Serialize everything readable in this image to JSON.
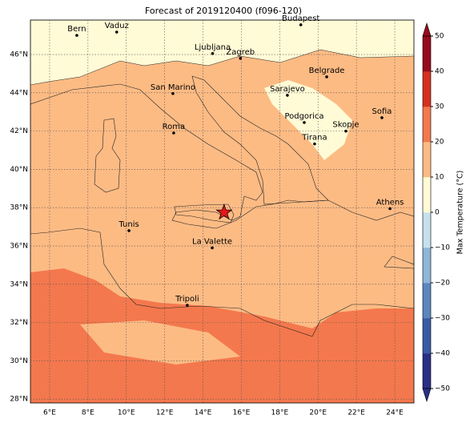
{
  "title": "Forecast of 2019120400 (f096-120)",
  "map": {
    "xlim": [
      5,
      25
    ],
    "ylim": [
      27.8,
      47.8
    ],
    "xticks": [
      {
        "value": 6,
        "label": "6°E"
      },
      {
        "value": 8,
        "label": "8°E"
      },
      {
        "value": 10,
        "label": "10°E"
      },
      {
        "value": 12,
        "label": "12°E"
      },
      {
        "value": 14,
        "label": "14°E"
      },
      {
        "value": 16,
        "label": "16°E"
      },
      {
        "value": 18,
        "label": "18°E"
      },
      {
        "value": 20,
        "label": "20°E"
      },
      {
        "value": 22,
        "label": "22°E"
      },
      {
        "value": 24,
        "label": "24°E"
      }
    ],
    "yticks": [
      {
        "value": 28,
        "label": "28°N"
      },
      {
        "value": 30,
        "label": "30°N"
      },
      {
        "value": 32,
        "label": "32°N"
      },
      {
        "value": 34,
        "label": "34°N"
      },
      {
        "value": 36,
        "label": "36°N"
      },
      {
        "value": 38,
        "label": "38°N"
      },
      {
        "value": 40,
        "label": "40°N"
      },
      {
        "value": 42,
        "label": "42°N"
      },
      {
        "value": 44,
        "label": "44°N"
      },
      {
        "value": 46,
        "label": "46°N"
      }
    ],
    "grid": true,
    "cities": [
      {
        "name": "Bern",
        "lon": 7.42,
        "lat": 47.0
      },
      {
        "name": "Vaduz",
        "lon": 9.5,
        "lat": 47.17
      },
      {
        "name": "Budapest",
        "lon": 19.1,
        "lat": 47.55
      },
      {
        "name": "Ljubljana",
        "lon": 14.5,
        "lat": 46.05
      },
      {
        "name": "Zagreb",
        "lon": 15.95,
        "lat": 45.8
      },
      {
        "name": "Belgrade",
        "lon": 20.45,
        "lat": 44.83
      },
      {
        "name": "Sarajevo",
        "lon": 18.4,
        "lat": 43.87
      },
      {
        "name": "San Marino",
        "lon": 12.43,
        "lat": 43.96
      },
      {
        "name": "Sofia",
        "lon": 23.33,
        "lat": 42.7
      },
      {
        "name": "Podgorica",
        "lon": 19.28,
        "lat": 42.45
      },
      {
        "name": "Skopje",
        "lon": 21.45,
        "lat": 42.0
      },
      {
        "name": "Roma",
        "lon": 12.47,
        "lat": 41.9
      },
      {
        "name": "Tirana",
        "lon": 19.82,
        "lat": 41.33
      },
      {
        "name": "Athens",
        "lon": 23.75,
        "lat": 37.95
      },
      {
        "name": "Tunis",
        "lon": 10.14,
        "lat": 36.8
      },
      {
        "name": "La Valette",
        "lon": 14.48,
        "lat": 35.9
      },
      {
        "name": "Tripoli",
        "lon": 13.18,
        "lat": 32.9
      }
    ],
    "marker": {
      "lon": 15.1,
      "lat": 37.75,
      "color": "#e8161b"
    }
  },
  "colorbar": {
    "label": "Max Temperature (°C)",
    "lim": [
      -50,
      50
    ],
    "ticks": [
      {
        "value": -50,
        "label": "−50"
      },
      {
        "value": -40,
        "label": "−40"
      },
      {
        "value": -30,
        "label": "−30"
      },
      {
        "value": -20,
        "label": "−20"
      },
      {
        "value": -10,
        "label": "−10"
      },
      0,
      10,
      20,
      30,
      40,
      50
    ],
    "colors": [
      "#2a2f86",
      "#3b5aa6",
      "#5b87bf",
      "#8fb5d8",
      "#c6e1ee",
      "#fffbd6",
      "#fdbb84",
      "#f4784d",
      "#d7301f",
      "#970b1d"
    ]
  }
}
